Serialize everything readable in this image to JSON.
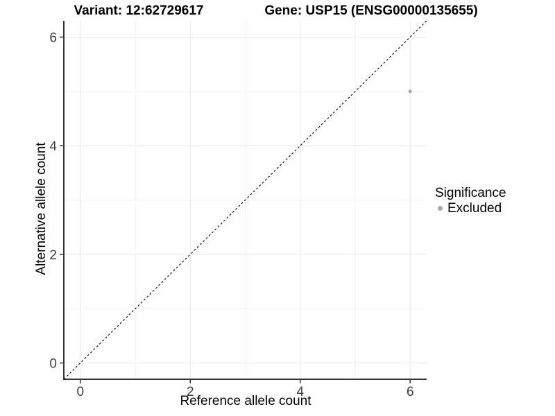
{
  "chart_data": {
    "type": "scatter",
    "title_variant": "Variant: 12:62729617",
    "title_gene": "Gene: USP15 (ENSG00000135655)",
    "xlabel": "Reference allele count",
    "ylabel": "Alternative allele count",
    "xlim": [
      -0.3,
      6.3
    ],
    "ylim": [
      -0.3,
      6.3
    ],
    "x_ticks": [
      0,
      2,
      4,
      6
    ],
    "y_ticks": [
      0,
      2,
      4,
      6
    ],
    "x_minor_gridlines": [
      1,
      3,
      5
    ],
    "y_minor_gridlines": [
      1,
      3,
      5
    ],
    "grid": true,
    "reference_line": {
      "type": "identity y=x",
      "style": "dashed",
      "color": "#000000"
    },
    "series": [
      {
        "name": "Excluded",
        "marker": "circle",
        "color": "#a9a9a9",
        "points": [
          {
            "x": 6,
            "y": 5
          }
        ]
      }
    ],
    "legend": {
      "position": "right",
      "title": "Significance",
      "entries": [
        {
          "label": "Excluded",
          "color": "#a9a9a9"
        }
      ]
    },
    "colors": {
      "background": "#ffffff",
      "grid_major": "#e8e8e8",
      "grid_minor": "#f2f2f2",
      "axis_line": "#333333",
      "tick_label": "#3d3d3d",
      "text": "#000000",
      "point": "#a9a9a9"
    }
  }
}
